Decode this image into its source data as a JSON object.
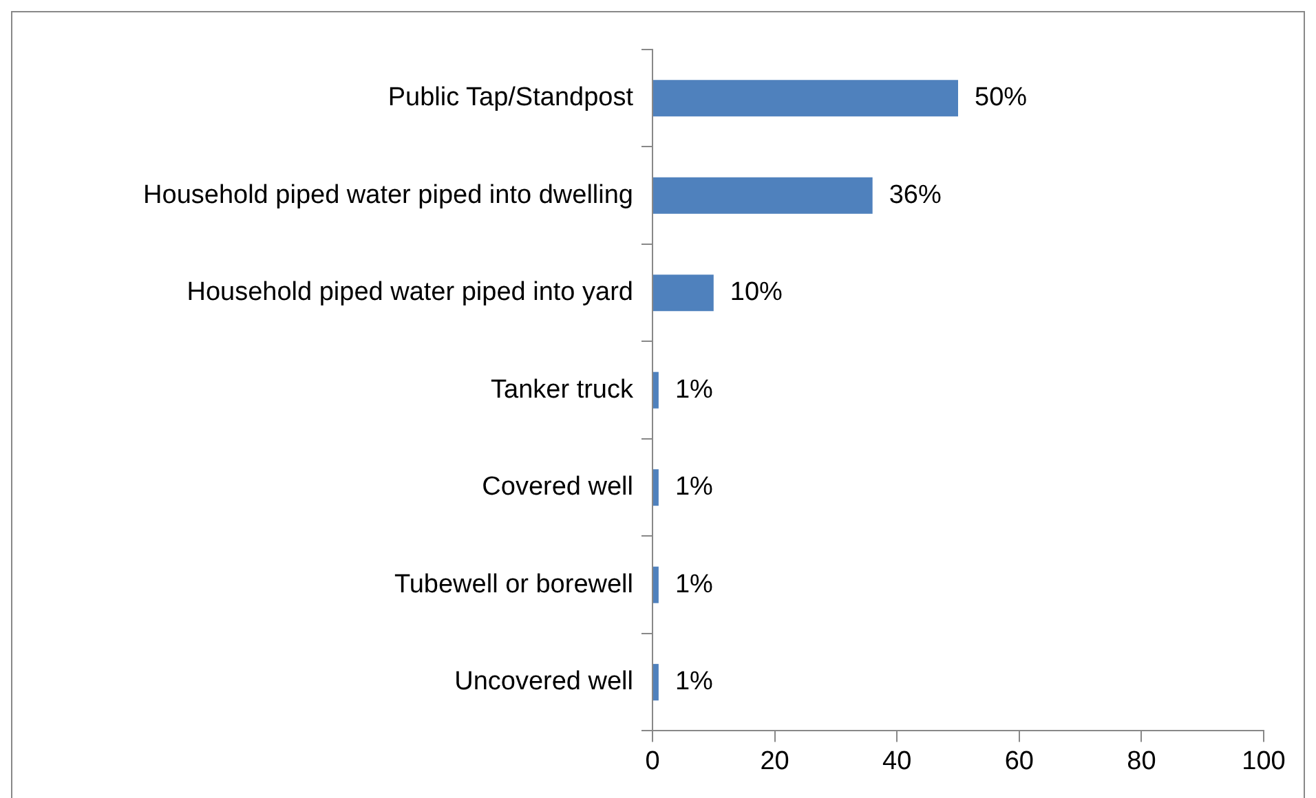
{
  "chart_data": {
    "type": "bar",
    "orientation": "horizontal",
    "categories": [
      "Public Tap/Standpost",
      "Household piped water piped into dwelling",
      "Household piped water piped into yard",
      "Tanker truck",
      "Covered well",
      "Tubewell or borewell",
      "Uncovered well"
    ],
    "values": [
      50,
      36,
      10,
      1,
      1,
      1,
      1
    ],
    "value_labels": [
      "50%",
      "36%",
      "10%",
      "1%",
      "1%",
      "1%",
      "1%"
    ],
    "color": "#4f81bd",
    "xlim": [
      0,
      100
    ],
    "xticks": [
      0,
      20,
      40,
      60,
      80,
      100
    ],
    "grid": false,
    "legend": false
  }
}
